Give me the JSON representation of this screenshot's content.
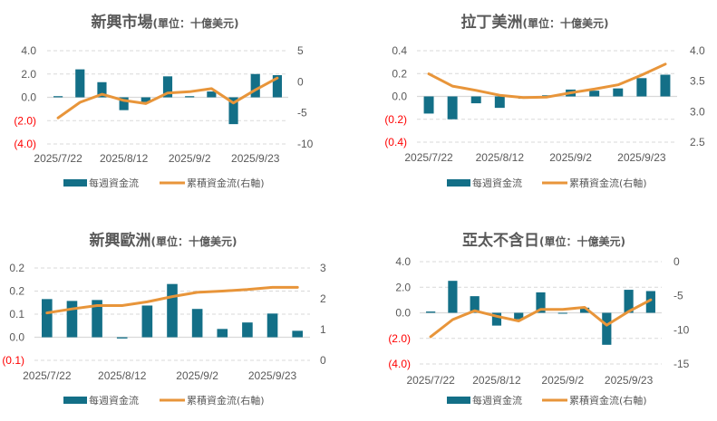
{
  "colors": {
    "bar": "#136f87",
    "line": "#e8953a",
    "grid": "#d9d9d9",
    "text": "#595959",
    "negative_label": "#ff0000"
  },
  "chart_data": [
    {
      "type": "bar+line",
      "title": "新興市場",
      "unit": "(單位：十億美元)",
      "categories": [
        "2025/7/22",
        "2025/7/29",
        "2025/8/5",
        "2025/8/12",
        "2025/8/19",
        "2025/8/26",
        "2025/9/2",
        "2025/9/9",
        "2025/9/16",
        "2025/9/23",
        "2025/9/30"
      ],
      "x_tick_labels": [
        "2025/7/22",
        "2025/8/12",
        "2025/9/2",
        "2025/9/23"
      ],
      "series": [
        {
          "name": "每週資金流",
          "type": "bar",
          "axis": "left",
          "values": [
            0.1,
            2.4,
            1.3,
            -1.1,
            -0.4,
            1.8,
            0.1,
            0.5,
            -2.3,
            2.0,
            1.9
          ]
        },
        {
          "name": "累積資金流(右軸)",
          "type": "line",
          "axis": "right",
          "values": [
            -5.8,
            -3.3,
            -2.0,
            -3.0,
            -3.5,
            -1.8,
            -1.6,
            -1.1,
            -3.4,
            -1.3,
            0.6
          ]
        }
      ],
      "left_axis": {
        "ylim": [
          -4,
          4
        ],
        "tick_labels": [
          "4.0",
          "2.0",
          "0.0",
          "(2.0)",
          "(4.0)"
        ]
      },
      "right_axis": {
        "ylim": [
          -10,
          5
        ],
        "tick_labels": [
          "5",
          "0",
          "-5",
          "-10"
        ]
      },
      "grid": true,
      "legend": "bottom"
    },
    {
      "type": "bar+line",
      "title": "拉丁美洲",
      "unit": "(單位：十億美元)",
      "categories": [
        "2025/7/22",
        "2025/7/29",
        "2025/8/5",
        "2025/8/12",
        "2025/8/19",
        "2025/8/26",
        "2025/9/2",
        "2025/9/9",
        "2025/9/16",
        "2025/9/23",
        "2025/9/30"
      ],
      "x_tick_labels": [
        "2025/7/22",
        "2025/8/12",
        "2025/9/2",
        "2025/9/23"
      ],
      "series": [
        {
          "name": "每週資金流",
          "type": "bar",
          "axis": "left",
          "values": [
            -0.15,
            -0.2,
            -0.06,
            -0.1,
            -0.02,
            0.01,
            0.06,
            0.05,
            0.07,
            0.16,
            0.19
          ]
        },
        {
          "name": "累積資金流(右軸)",
          "type": "line",
          "axis": "right",
          "values": [
            3.62,
            3.42,
            3.35,
            3.27,
            3.23,
            3.24,
            3.31,
            3.37,
            3.44,
            3.6,
            3.78
          ]
        }
      ],
      "left_axis": {
        "ylim": [
          -0.4,
          0.4
        ],
        "tick_labels": [
          "0.4",
          "0.2",
          "0.0",
          "(0.2)",
          "(0.4)"
        ]
      },
      "right_axis": {
        "ylim": [
          2.5,
          4.0
        ],
        "tick_labels": [
          "4.0",
          "3.5",
          "3.0",
          "2.5"
        ]
      },
      "grid": true,
      "legend": "bottom"
    },
    {
      "type": "bar+line",
      "title": "新興歐洲",
      "unit": "(單位：十億美元)",
      "categories": [
        "2025/7/22",
        "2025/7/29",
        "2025/8/5",
        "2025/8/12",
        "2025/8/19",
        "2025/8/26",
        "2025/9/2",
        "2025/9/9",
        "2025/9/16",
        "2025/9/23",
        "2025/9/30"
      ],
      "x_tick_labels": [
        "2025/7/22",
        "2025/8/12",
        "2025/9/2",
        "2025/9/23"
      ],
      "series": [
        {
          "name": "每週資金流",
          "type": "bar",
          "axis": "left",
          "values": [
            0.124,
            0.118,
            0.121,
            -0.004,
            0.103,
            0.173,
            0.092,
            0.027,
            0.048,
            0.077,
            0.021
          ]
        },
        {
          "name": "累積資金流(右軸)",
          "type": "line",
          "axis": "right",
          "values": [
            1.54,
            1.67,
            1.78,
            1.78,
            1.9,
            2.07,
            2.21,
            2.25,
            2.3,
            2.37,
            2.37
          ]
        }
      ],
      "left_axis": {
        "ylim": [
          -0.075,
          0.225
        ],
        "tick_labels": [
          "0.2",
          "0.2",
          "0.1",
          "0.0",
          "(0.1)"
        ]
      },
      "right_axis": {
        "ylim": [
          0,
          3
        ],
        "tick_labels": [
          "3",
          "2",
          "1",
          "0"
        ]
      },
      "grid": true,
      "legend": "bottom"
    },
    {
      "type": "bar+line",
      "title": "亞太不含日",
      "unit": "(單位：十億美元)",
      "categories": [
        "2025/7/22",
        "2025/7/29",
        "2025/8/5",
        "2025/8/12",
        "2025/8/19",
        "2025/8/26",
        "2025/9/2",
        "2025/9/9",
        "2025/9/16",
        "2025/9/23",
        "2025/9/30"
      ],
      "x_tick_labels": [
        "2025/7/22",
        "2025/8/12",
        "2025/9/2",
        "2025/9/23"
      ],
      "series": [
        {
          "name": "每週資金流",
          "type": "bar",
          "axis": "left",
          "values": [
            0.1,
            2.5,
            1.3,
            -1.0,
            -0.5,
            1.6,
            0.0,
            0.4,
            -2.5,
            1.8,
            1.7
          ]
        },
        {
          "name": "累積資金流(右軸)",
          "type": "line",
          "axis": "right",
          "values": [
            -11.0,
            -8.5,
            -7.2,
            -8.0,
            -8.7,
            -7.0,
            -7.0,
            -6.7,
            -9.3,
            -7.3,
            -5.6
          ]
        }
      ],
      "left_axis": {
        "ylim": [
          -4,
          4
        ],
        "tick_labels": [
          "4.0",
          "2.0",
          "0.0",
          "(2.0)",
          "(4.0)"
        ]
      },
      "right_axis": {
        "ylim": [
          -15,
          0
        ],
        "tick_labels": [
          "0",
          "-5",
          "-10",
          "-15"
        ]
      },
      "grid": true,
      "legend": "bottom"
    }
  ]
}
